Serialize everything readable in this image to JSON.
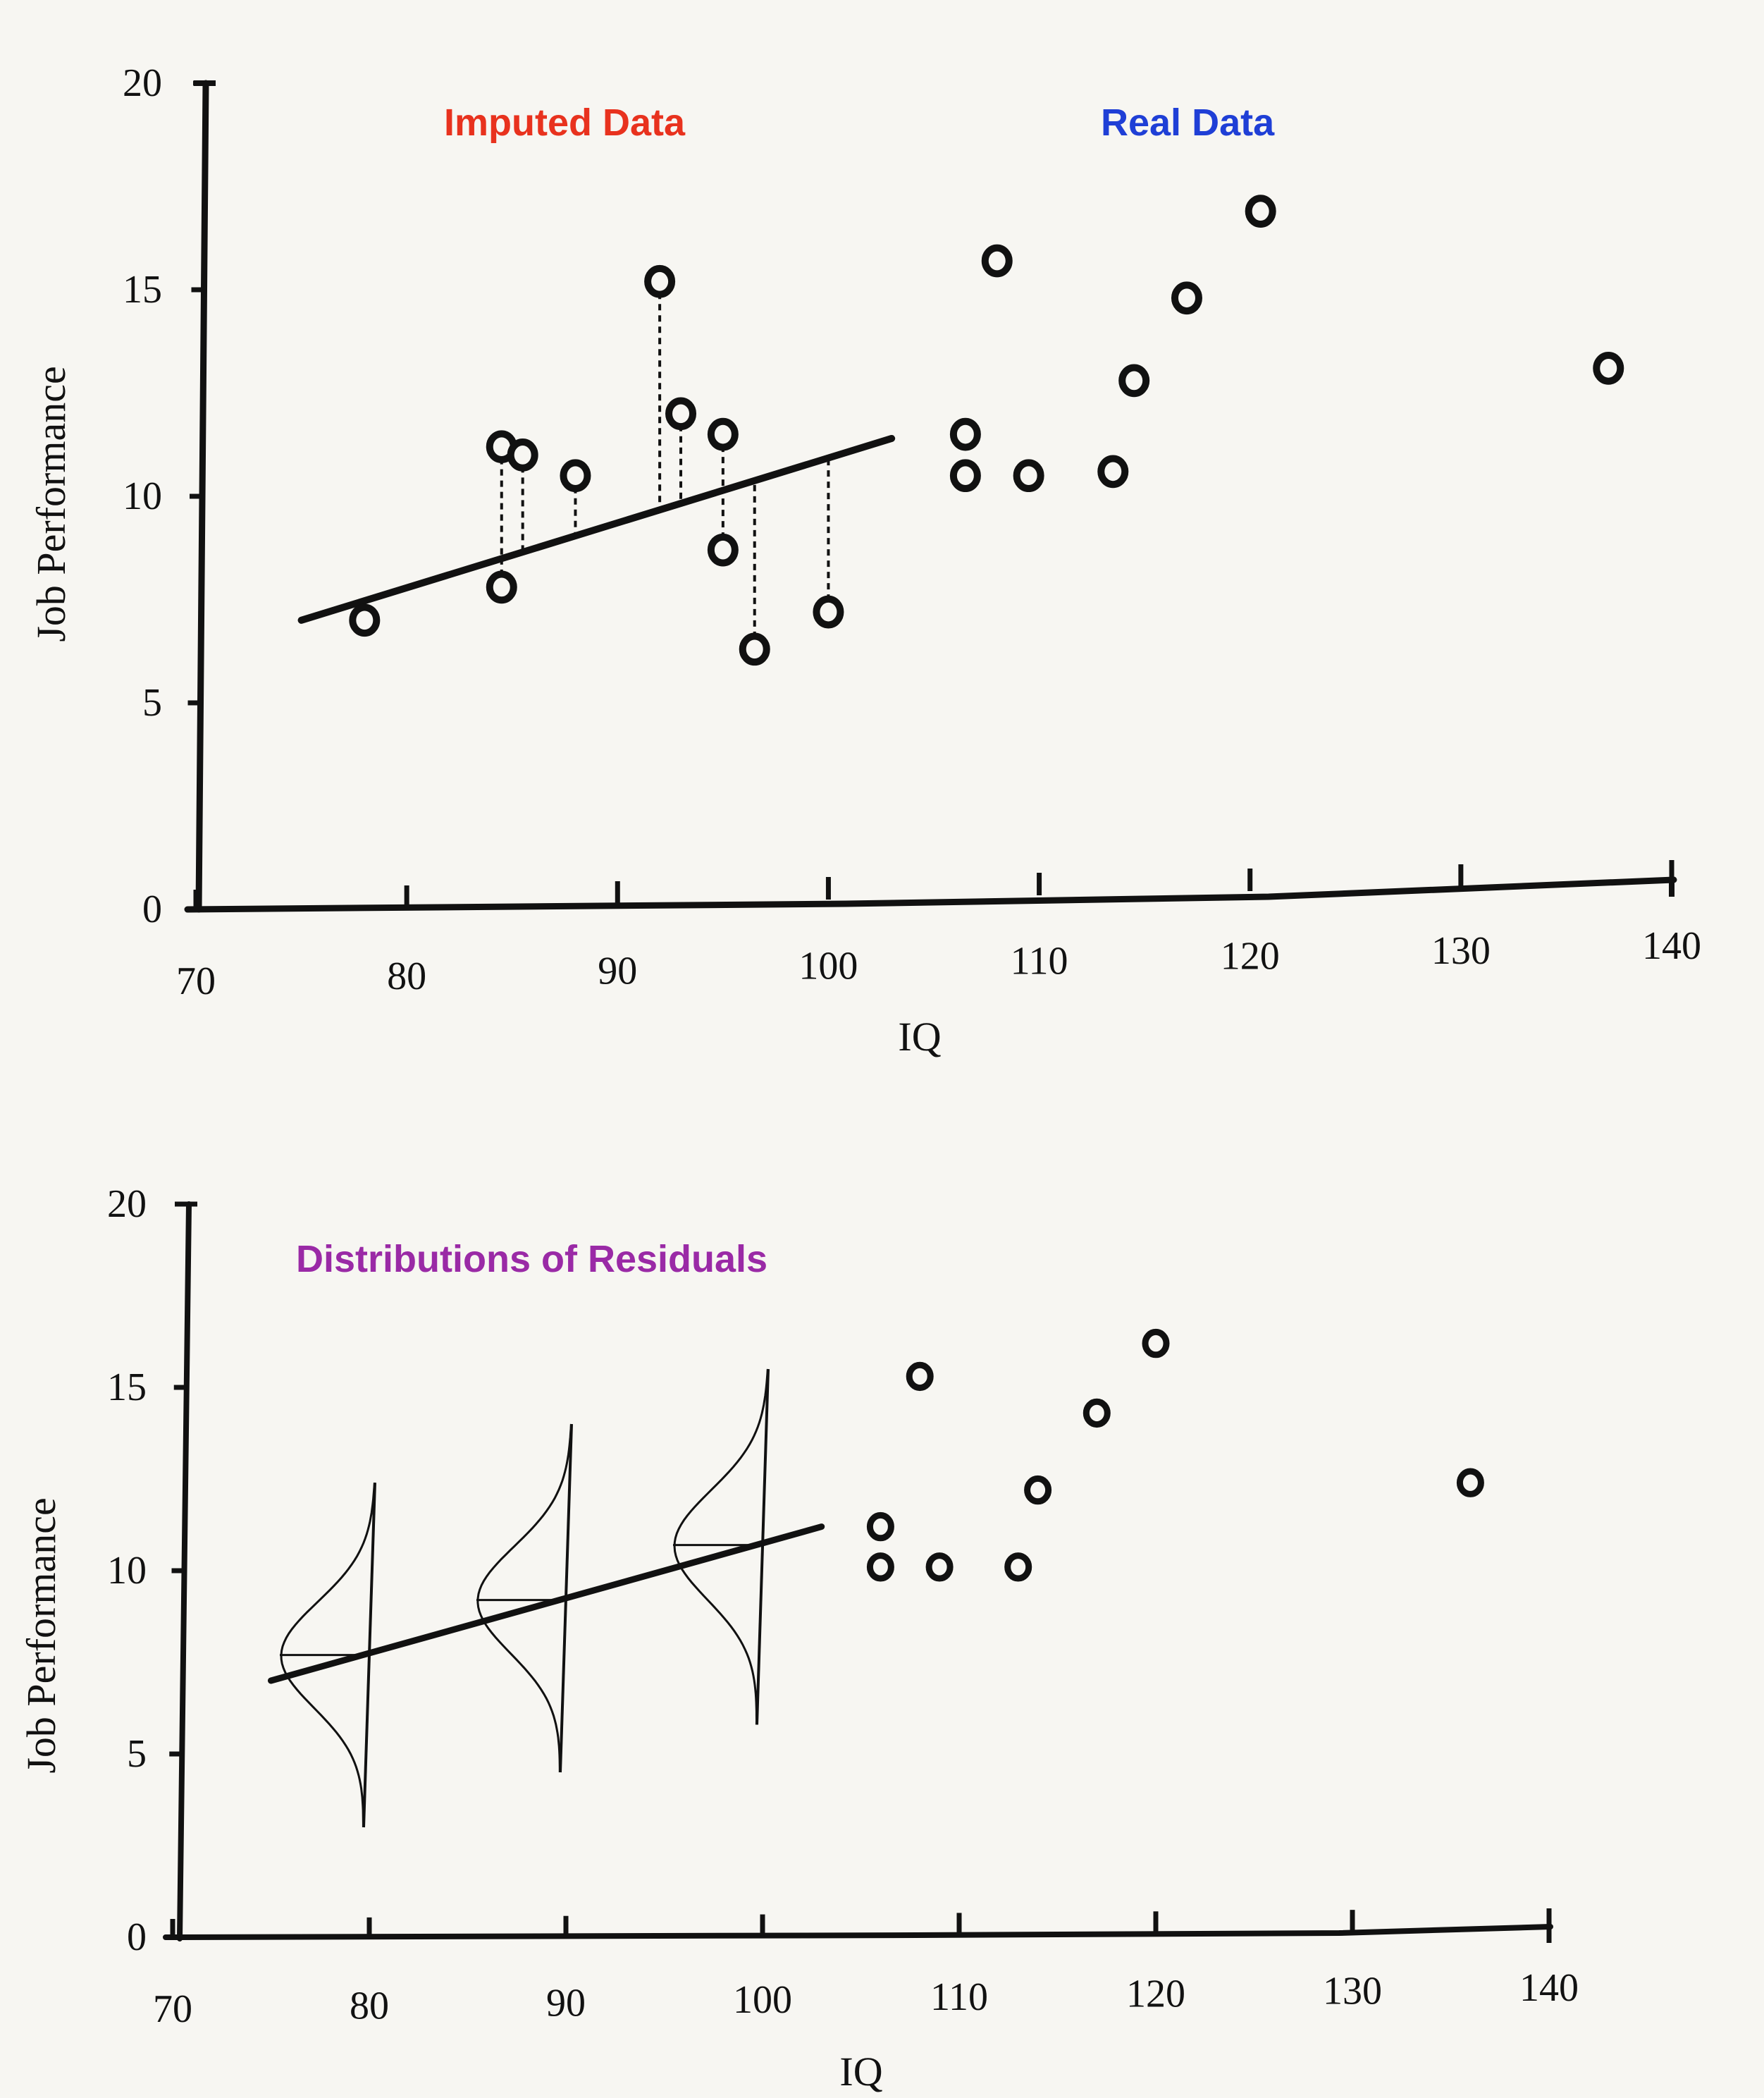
{
  "colors": {
    "ink": "#111111",
    "imputed_label": "#e8321e",
    "real_label": "#1f3fd6",
    "residual_label": "#9a2aa6",
    "background": "#f7f6f2"
  },
  "chart_data": [
    {
      "type": "scatter",
      "title": "",
      "xlabel": "IQ",
      "ylabel": "Job Performance",
      "xlim": [
        70,
        140
      ],
      "ylim": [
        0,
        20
      ],
      "xticks": [
        70,
        80,
        90,
        100,
        110,
        120,
        130,
        140
      ],
      "yticks": [
        0,
        5,
        10,
        15,
        20
      ],
      "annotations": [
        "Imputed Data",
        "Real Data"
      ],
      "regression_line": {
        "x": [
          75,
          103
        ],
        "y": [
          7,
          11.4
        ]
      },
      "series": [
        {
          "name": "Imputed Data",
          "points": [
            {
              "x": 78,
              "y": 7
            },
            {
              "x": 84.5,
              "y": 11.2
            },
            {
              "x": 85.5,
              "y": 11.0
            },
            {
              "x": 88,
              "y": 10.5
            },
            {
              "x": 92,
              "y": 15.2
            },
            {
              "x": 93,
              "y": 12.0
            },
            {
              "x": 95,
              "y": 11.5
            },
            {
              "x": 84.5,
              "y": 7.8
            },
            {
              "x": 95,
              "y": 8.7
            },
            {
              "x": 96.5,
              "y": 6.3
            },
            {
              "x": 100,
              "y": 7.2
            }
          ]
        },
        {
          "name": "Real Data",
          "points": [
            {
              "x": 106.5,
              "y": 11.5
            },
            {
              "x": 106.5,
              "y": 10.5
            },
            {
              "x": 108,
              "y": 15.7
            },
            {
              "x": 109.5,
              "y": 10.5
            },
            {
              "x": 113.5,
              "y": 10.6
            },
            {
              "x": 114.5,
              "y": 12.8
            },
            {
              "x": 117,
              "y": 14.8
            },
            {
              "x": 120.5,
              "y": 16.9
            },
            {
              "x": 137,
              "y": 13.1
            }
          ]
        }
      ]
    },
    {
      "type": "scatter",
      "title": "",
      "xlabel": "IQ",
      "ylabel": "Job Performance",
      "xlim": [
        70,
        140
      ],
      "ylim": [
        0,
        20
      ],
      "xticks": [
        70,
        80,
        90,
        100,
        110,
        120,
        130,
        140
      ],
      "yticks": [
        0,
        5,
        10,
        15,
        20
      ],
      "annotations": [
        "Distributions of Residuals"
      ],
      "regression_line": {
        "x": [
          75,
          103
        ],
        "y": [
          7,
          11.2
        ]
      },
      "residual_distributions": [
        {
          "x": 80,
          "center": 7.7,
          "range": [
            3,
            12.4
          ]
        },
        {
          "x": 90,
          "center": 9.2,
          "range": [
            4.5,
            14
          ]
        },
        {
          "x": 100,
          "center": 10.7,
          "range": [
            5.8,
            15.5
          ]
        }
      ],
      "series": [
        {
          "name": "Real Data",
          "points": [
            {
              "x": 106,
              "y": 11.2
            },
            {
              "x": 106,
              "y": 10.1
            },
            {
              "x": 108,
              "y": 15.3
            },
            {
              "x": 109,
              "y": 10.1
            },
            {
              "x": 113,
              "y": 10.1
            },
            {
              "x": 114,
              "y": 12.2
            },
            {
              "x": 117,
              "y": 14.3
            },
            {
              "x": 120,
              "y": 16.2
            },
            {
              "x": 136,
              "y": 12.4
            }
          ]
        }
      ]
    }
  ]
}
